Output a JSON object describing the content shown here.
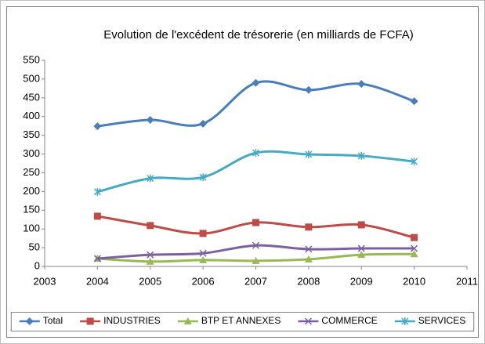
{
  "chart_data": {
    "type": "line",
    "title": "Evolution de l'excédent de trésorerie (en milliards de FCFA)",
    "x": [
      2004,
      2005,
      2006,
      2007,
      2008,
      2009,
      2010
    ],
    "xlim": [
      2003,
      2011
    ],
    "xticks": [
      2003,
      2004,
      2005,
      2006,
      2007,
      2008,
      2009,
      2010,
      2011
    ],
    "ylim": [
      0,
      550
    ],
    "yticks": [
      0,
      50,
      100,
      150,
      200,
      250,
      300,
      350,
      400,
      450,
      500,
      550
    ],
    "grid": false,
    "legend": "bottom",
    "smooth": true,
    "series": [
      {
        "name": "Total",
        "color": "#4a7ebb",
        "marker": "diamond",
        "values": [
          374,
          391,
          381,
          490,
          471,
          487,
          441
        ]
      },
      {
        "name": "INDUSTRIES",
        "color": "#be4b48",
        "marker": "square",
        "values": [
          134,
          109,
          88,
          117,
          105,
          111,
          77
        ]
      },
      {
        "name": "BTP ET ANNEXES",
        "color": "#98b954",
        "marker": "triangle",
        "values": [
          21,
          13,
          17,
          15,
          19,
          31,
          33
        ]
      },
      {
        "name": "COMMERCE",
        "color": "#7d60a0",
        "marker": "x",
        "values": [
          21,
          31,
          35,
          56,
          46,
          48,
          48
        ]
      },
      {
        "name": "SERVICES",
        "color": "#46aac5",
        "marker": "star",
        "values": [
          199,
          235,
          238,
          303,
          299,
          295,
          280
        ]
      }
    ]
  }
}
